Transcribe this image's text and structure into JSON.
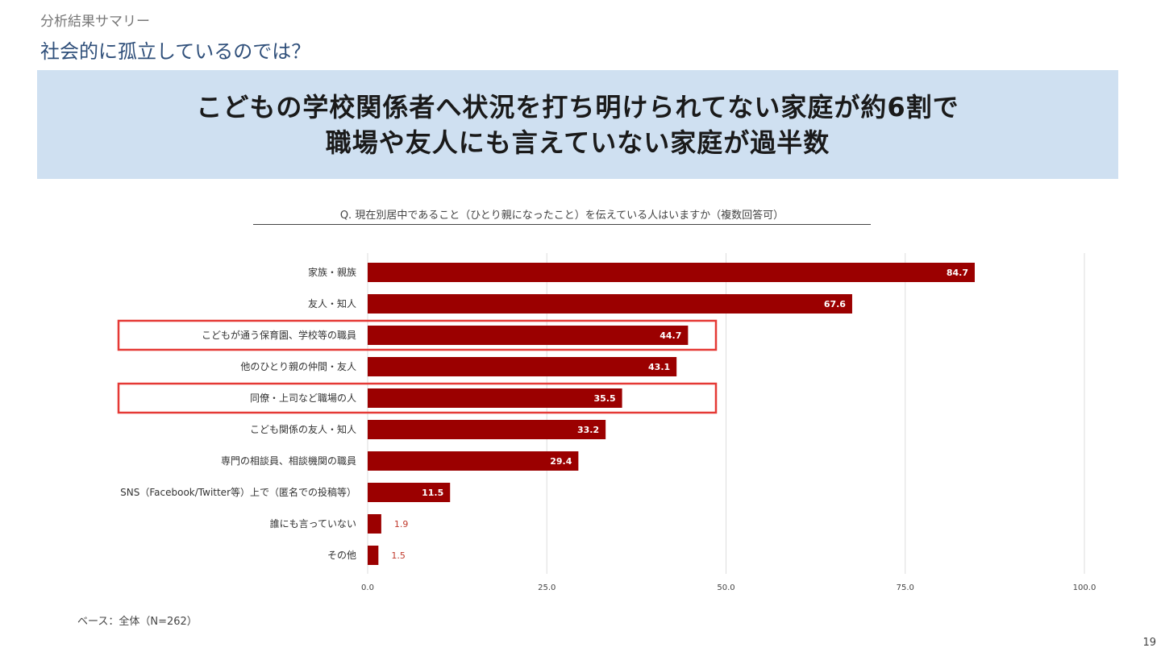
{
  "header": {
    "breadcrumb": "分析結果サマリー",
    "title": "社会的に孤立しているのでは？"
  },
  "headline": {
    "line1": "こどもの学校関係者へ状況を打ち明けられてない家庭が約6割で",
    "line2": "職場や友人にも言えていない家庭が過半数"
  },
  "question": "Q. 現在別居中であること（ひとり親になったこと）を伝えている人はいますか（複数回答可）",
  "base_note": "ベース：全体（N=262）",
  "page_number": "19",
  "chart_data": {
    "type": "bar",
    "orientation": "horizontal",
    "categories": [
      "家族・親族",
      "友人・知人",
      "こどもが通う保育園、学校等の職員",
      "他のひとり親の仲間・友人",
      "同僚・上司など職場の人",
      "こども関係の友人・知人",
      "専門の相談員、相談機関の職員",
      "SNS（Facebook/Twitter等）上で（匿名での投稿等）",
      "誰にも言っていない",
      "その他"
    ],
    "values": [
      84.7,
      67.6,
      44.7,
      43.1,
      35.5,
      33.2,
      29.4,
      11.5,
      1.9,
      1.5
    ],
    "value_labels": [
      "84.7",
      "67.6",
      "44.7",
      "43.1",
      "35.5",
      "33.2",
      "29.4",
      "11.5",
      "1.9",
      "1.5"
    ],
    "xlim": [
      0,
      100
    ],
    "xticks": [
      0,
      25,
      50,
      75,
      100
    ],
    "xtick_labels": [
      "0.0",
      "25.0",
      "50.0",
      "75.0",
      "100.0"
    ],
    "grid": true,
    "highlighted": [
      "こどもが通う保育園、学校等の職員",
      "同僚・上司など職場の人"
    ],
    "colors": {
      "bar": "#9b0000",
      "highlight_box": "#e53935",
      "grid": "#dddddd"
    }
  }
}
